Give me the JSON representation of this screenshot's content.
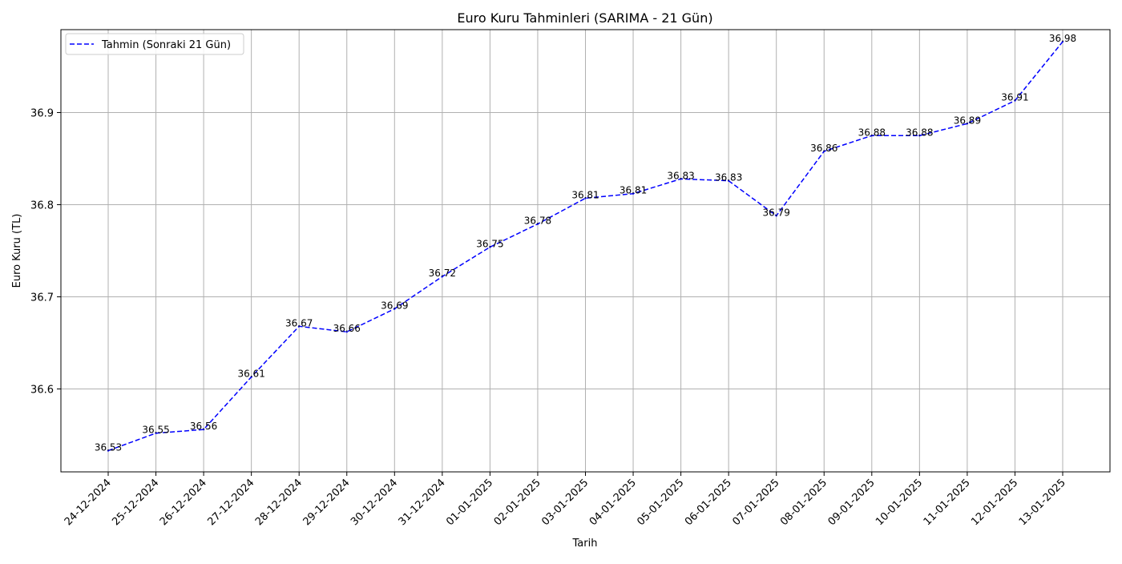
{
  "chart_data": {
    "type": "line",
    "title": "Euro Kuru Tahminleri (SARIMA - 21 Gün)",
    "xlabel": "Tarih",
    "ylabel": "Euro Kuru (TL)",
    "categories": [
      "24-12-2024",
      "25-12-2024",
      "26-12-2024",
      "27-12-2024",
      "28-12-2024",
      "29-12-2024",
      "30-12-2024",
      "31-12-2024",
      "01-01-2025",
      "02-01-2025",
      "03-01-2025",
      "04-01-2025",
      "05-01-2025",
      "06-01-2025",
      "07-01-2025",
      "08-01-2025",
      "09-01-2025",
      "10-01-2025",
      "11-01-2025",
      "12-01-2025",
      "13-01-2025"
    ],
    "series": [
      {
        "name": "Tahmin (Sonraki 21 Gün)",
        "color": "#0000ff",
        "line_style": "dashed",
        "values": [
          36.533,
          36.552,
          36.556,
          36.613,
          36.668,
          36.662,
          36.687,
          36.722,
          36.754,
          36.779,
          36.807,
          36.812,
          36.828,
          36.826,
          36.788,
          36.858,
          36.875,
          36.875,
          36.888,
          36.913,
          36.977
        ],
        "data_labels": [
          "36.53",
          "36.55",
          "36.56",
          "36.61",
          "36.67",
          "36.66",
          "36.69",
          "36.72",
          "36.75",
          "36.78",
          "36.81",
          "36.81",
          "36.83",
          "36.83",
          "36.79",
          "36.86",
          "36.88",
          "36.88",
          "36.89",
          "36.91",
          "36.98"
        ]
      }
    ],
    "yticks": [
      36.6,
      36.7,
      36.8,
      36.9
    ],
    "ytick_labels": [
      "36.6",
      "36.7",
      "36.8",
      "36.9"
    ],
    "ylim": [
      36.51,
      36.99
    ],
    "grid": true,
    "legend_position": "top-left",
    "grid_color": "#b0b0b0"
  }
}
